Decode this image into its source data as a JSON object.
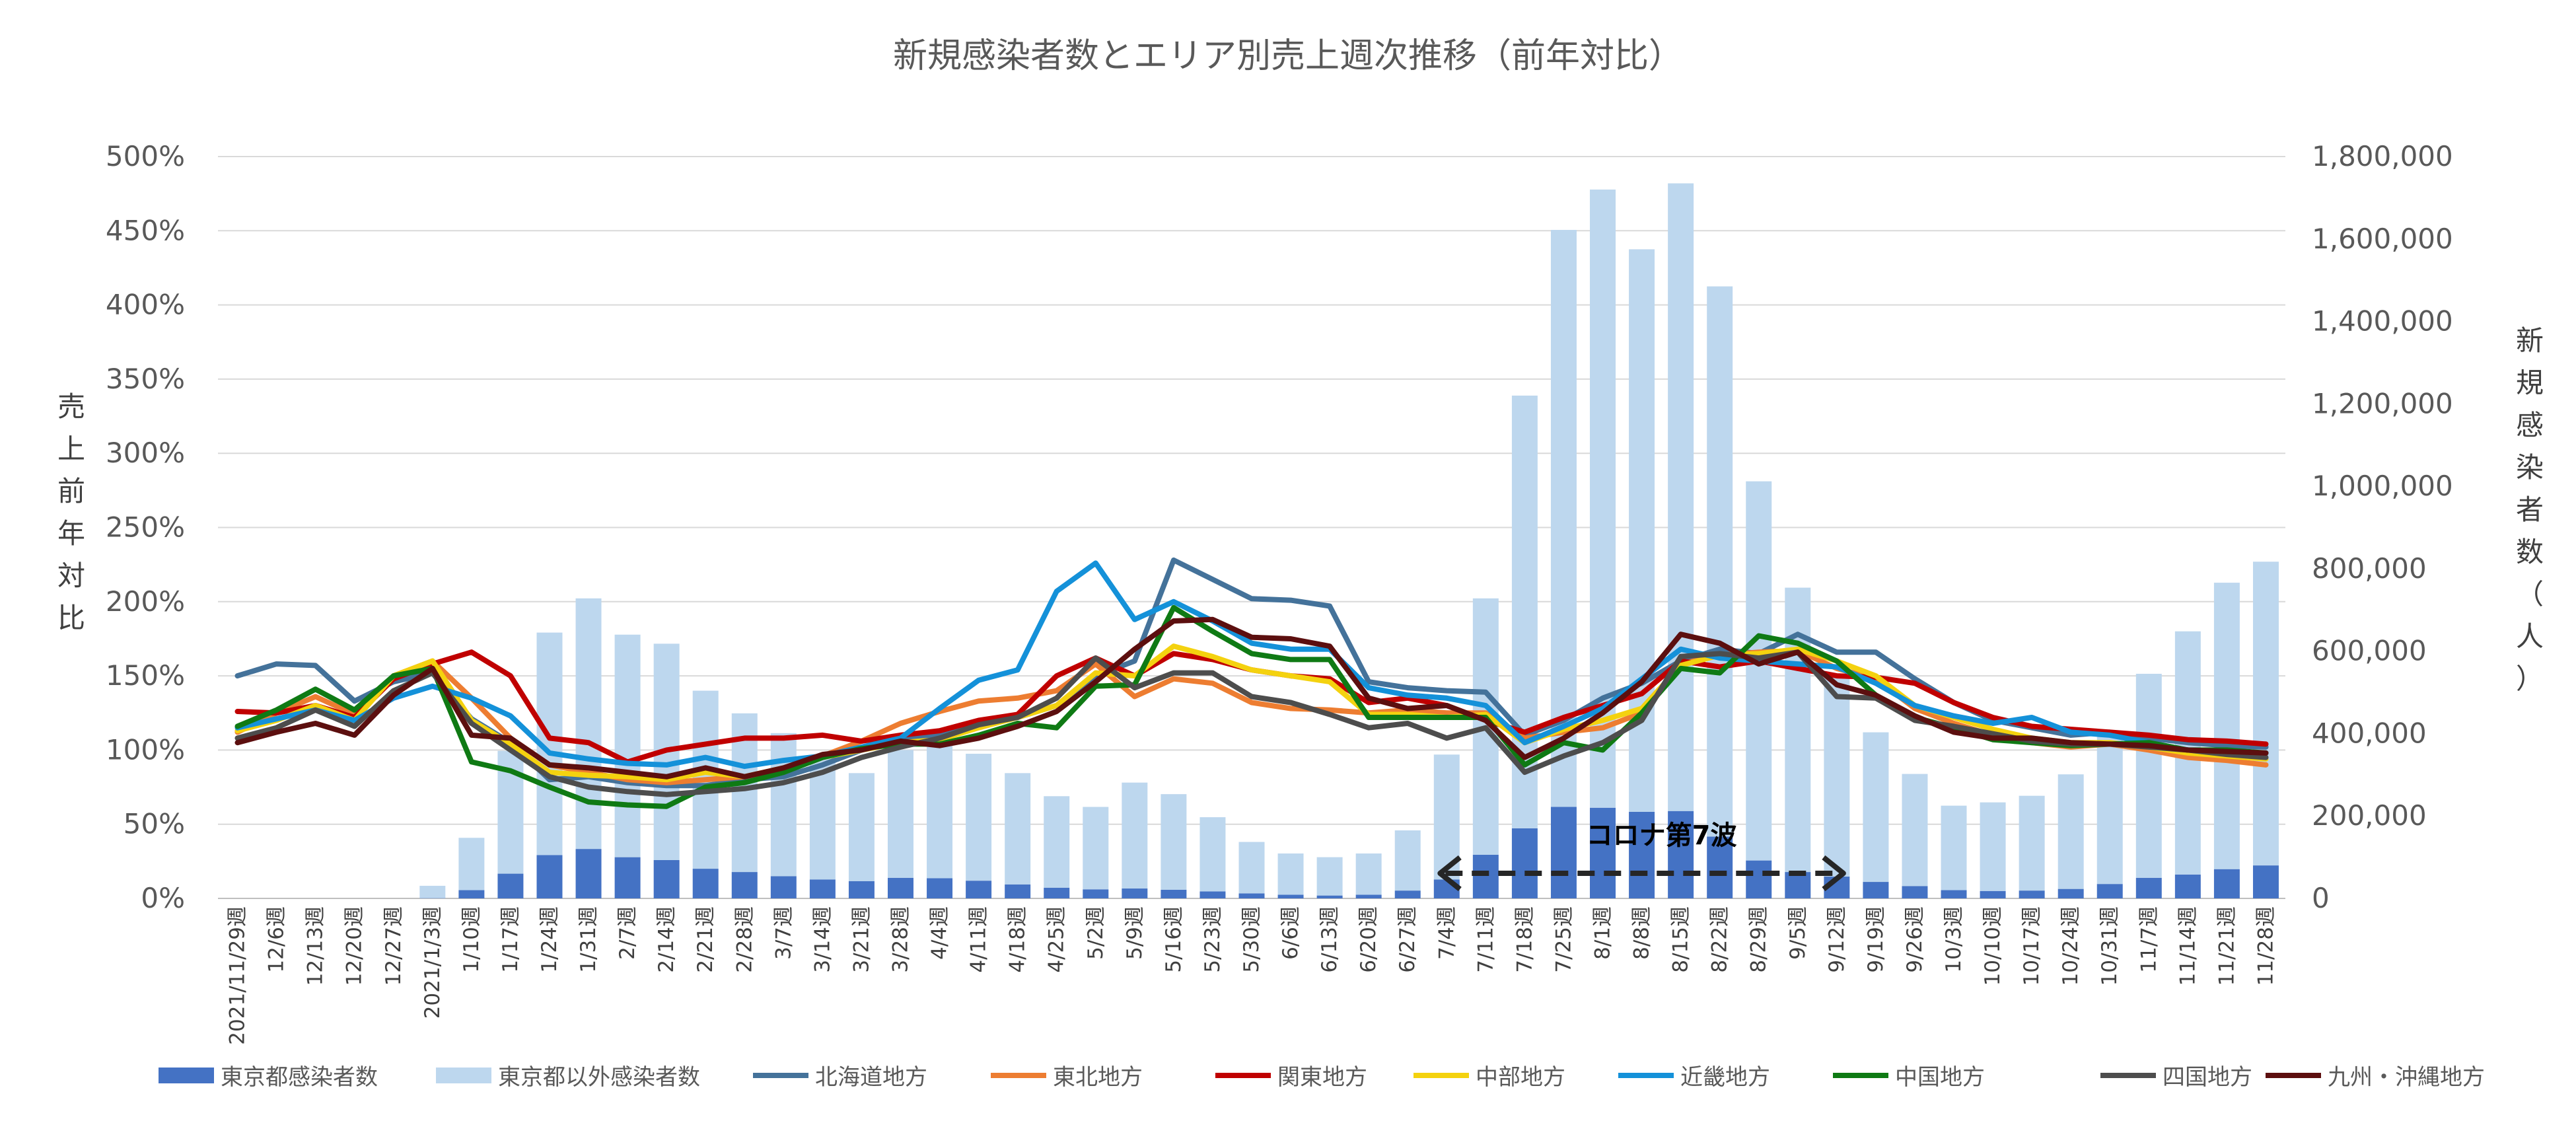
{
  "chart_data": {
    "type": "bar+line",
    "title": "新規感染者数とエリア別売上週次推移（前年対比）",
    "ylabel_left": "売上前年対比",
    "ylabel_right": "新規感染者数（人）",
    "ylim_left": [
      0,
      500
    ],
    "ylim_right": [
      0,
      1800000
    ],
    "yticks_left": [
      "0%",
      "50%",
      "100%",
      "150%",
      "200%",
      "250%",
      "300%",
      "350%",
      "400%",
      "450%",
      "500%"
    ],
    "yticks_right": [
      "0",
      "200,000",
      "400,000",
      "600,000",
      "800,000",
      "1,000,000",
      "1,200,000",
      "1,400,000",
      "1,600,000",
      "1,800,000"
    ],
    "categories": [
      "2021/11/29週",
      "12/6週",
      "12/13週",
      "12/20週",
      "12/27週",
      "2021/1/3週",
      "1/10週",
      "1/17週",
      "1/24週",
      "1/31週",
      "2/7週",
      "2/14週",
      "2/21週",
      "2/28週",
      "3/7週",
      "3/14週",
      "3/21週",
      "3/28週",
      "4/4週",
      "4/11週",
      "4/18週",
      "4/25週",
      "5/2週",
      "5/9週",
      "5/16週",
      "5/23週",
      "5/30週",
      "6/6週",
      "6/13週",
      "6/20週",
      "6/27週",
      "7/4週",
      "7/11週",
      "7/18週",
      "7/25週",
      "8/1週",
      "8/8週",
      "8/15週",
      "8/22週",
      "8/29週",
      "9/5週",
      "9/12週",
      "9/19週",
      "9/26週",
      "10/3週",
      "10/10週",
      "10/17週",
      "10/24週",
      "10/31週",
      "11/7週",
      "11/14週",
      "11/21週",
      "11/28週"
    ],
    "bar_series": [
      {
        "name": "東京都感染者数",
        "color": "#4472C4",
        "values": [
          0,
          0,
          0,
          0,
          0,
          600,
          20000,
          60000,
          105000,
          120000,
          100000,
          93000,
          72000,
          64000,
          54000,
          46000,
          42000,
          50000,
          49000,
          43000,
          34000,
          26000,
          22000,
          24000,
          21000,
          17000,
          12000,
          9000,
          7000,
          9000,
          19000,
          46000,
          106000,
          170000,
          222000,
          220000,
          210000,
          212000,
          150000,
          92000,
          64000,
          53000,
          40000,
          30000,
          20000,
          18000,
          19000,
          23000,
          35000,
          50000,
          58000,
          71000,
          80000
        ]
      },
      {
        "name": "東京都以外感染者数",
        "color": "#BDD7EE",
        "values": [
          0,
          0,
          0,
          0,
          0,
          30000,
          127000,
          298000,
          540000,
          608000,
          540000,
          525000,
          432000,
          385000,
          347000,
          300000,
          262000,
          310000,
          325000,
          308000,
          270000,
          222000,
          200000,
          257000,
          232000,
          180000,
          125000,
          100000,
          93000,
          100000,
          146000,
          303000,
          622000,
          1050000,
          1400000,
          1500000,
          1365000,
          1523000,
          1335000,
          920000,
          690000,
          490000,
          363000,
          272000,
          205000,
          215000,
          230000,
          278000,
          358000,
          495000,
          590000,
          695000,
          737000
        ]
      }
    ],
    "line_series": [
      {
        "name": "北海道地方",
        "color": "#44729A",
        "values": [
          150,
          158,
          157,
          133,
          146,
          152,
          121,
          105,
          80,
          82,
          78,
          76,
          76,
          80,
          82,
          90,
          100,
          107,
          110,
          118,
          122,
          130,
          150,
          160,
          228,
          215,
          202,
          201,
          197,
          146,
          142,
          140,
          139,
          110,
          120,
          135,
          145,
          160,
          168,
          165,
          178,
          166,
          166,
          148,
          132,
          120,
          115,
          110,
          112,
          108,
          105,
          103,
          102
        ]
      },
      {
        "name": "東北地方",
        "color": "#ED7D31",
        "values": [
          112,
          125,
          136,
          124,
          150,
          160,
          135,
          108,
          90,
          85,
          80,
          78,
          80,
          82,
          88,
          96,
          106,
          118,
          126,
          133,
          135,
          140,
          158,
          136,
          148,
          145,
          132,
          128,
          127,
          125,
          127,
          125,
          125,
          108,
          112,
          115,
          125,
          158,
          164,
          166,
          167,
          155,
          148,
          128,
          118,
          110,
          105,
          102,
          104,
          100,
          95,
          93,
          90
        ]
      },
      {
        "name": "関東地方",
        "color": "#C00000",
        "values": [
          126,
          125,
          130,
          122,
          148,
          158,
          166,
          150,
          108,
          105,
          92,
          100,
          104,
          108,
          108,
          110,
          106,
          110,
          113,
          120,
          124,
          150,
          162,
          150,
          165,
          161,
          154,
          150,
          148,
          132,
          135,
          130,
          120,
          112,
          122,
          130,
          138,
          160,
          156,
          160,
          155,
          150,
          149,
          145,
          132,
          122,
          116,
          114,
          112,
          110,
          107,
          106,
          104
        ]
      },
      {
        "name": "中部地方",
        "color": "#F4D20F",
        "values": [
          113,
          120,
          130,
          120,
          150,
          160,
          120,
          104,
          85,
          83,
          82,
          80,
          85,
          82,
          88,
          95,
          100,
          105,
          107,
          115,
          122,
          130,
          152,
          150,
          170,
          163,
          154,
          150,
          146,
          124,
          124,
          122,
          124,
          105,
          114,
          120,
          128,
          157,
          164,
          165,
          168,
          160,
          150,
          130,
          122,
          114,
          108,
          105,
          105,
          102,
          98,
          96,
          94
        ]
      },
      {
        "name": "近畿地方",
        "color": "#1491D9",
        "values": [
          115,
          121,
          127,
          120,
          135,
          143,
          135,
          123,
          98,
          94,
          91,
          90,
          95,
          89,
          93,
          96,
          102,
          108,
          128,
          147,
          154,
          207,
          226,
          188,
          200,
          187,
          172,
          168,
          168,
          142,
          137,
          135,
          130,
          105,
          116,
          128,
          148,
          168,
          162,
          160,
          158,
          156,
          145,
          130,
          123,
          118,
          122,
          112,
          110,
          105,
          100,
          98,
          98
        ]
      },
      {
        "name": "中国地方",
        "color": "#0F7A14",
        "values": [
          116,
          127,
          141,
          127,
          150,
          155,
          92,
          86,
          75,
          65,
          63,
          62,
          75,
          78,
          85,
          95,
          101,
          104,
          104,
          110,
          118,
          115,
          143,
          144,
          196,
          180,
          165,
          161,
          161,
          122,
          122,
          122,
          122,
          90,
          105,
          100,
          125,
          155,
          152,
          177,
          172,
          160,
          137,
          122,
          115,
          107,
          105,
          103,
          104,
          105,
          100,
          100,
          98
        ]
      },
      {
        "name": "四国地方",
        "color": "#4D4D4D",
        "values": [
          108,
          115,
          127,
          116,
          140,
          152,
          118,
          100,
          82,
          75,
          72,
          70,
          72,
          74,
          78,
          85,
          95,
          102,
          108,
          117,
          122,
          135,
          162,
          142,
          152,
          152,
          136,
          132,
          124,
          115,
          118,
          108,
          115,
          85,
          96,
          105,
          120,
          163,
          165,
          162,
          166,
          136,
          135,
          120,
          116,
          111,
          106,
          104,
          104,
          102,
          100,
          97,
          95
        ]
      },
      {
        "name": "九州・沖縄地方",
        "color": "#5C0F0F",
        "values": [
          105,
          112,
          118,
          110,
          137,
          155,
          110,
          108,
          90,
          88,
          85,
          82,
          88,
          82,
          88,
          97,
          100,
          106,
          103,
          108,
          116,
          126,
          146,
          168,
          187,
          188,
          176,
          175,
          170,
          135,
          128,
          130,
          120,
          95,
          108,
          125,
          146,
          178,
          172,
          158,
          166,
          144,
          137,
          123,
          112,
          108,
          108,
          105,
          104,
          103,
          100,
          99,
          98
        ]
      }
    ],
    "annotation": "コロナ第7波",
    "annotation_span": [
      "7/4週",
      "9/12週"
    ]
  }
}
